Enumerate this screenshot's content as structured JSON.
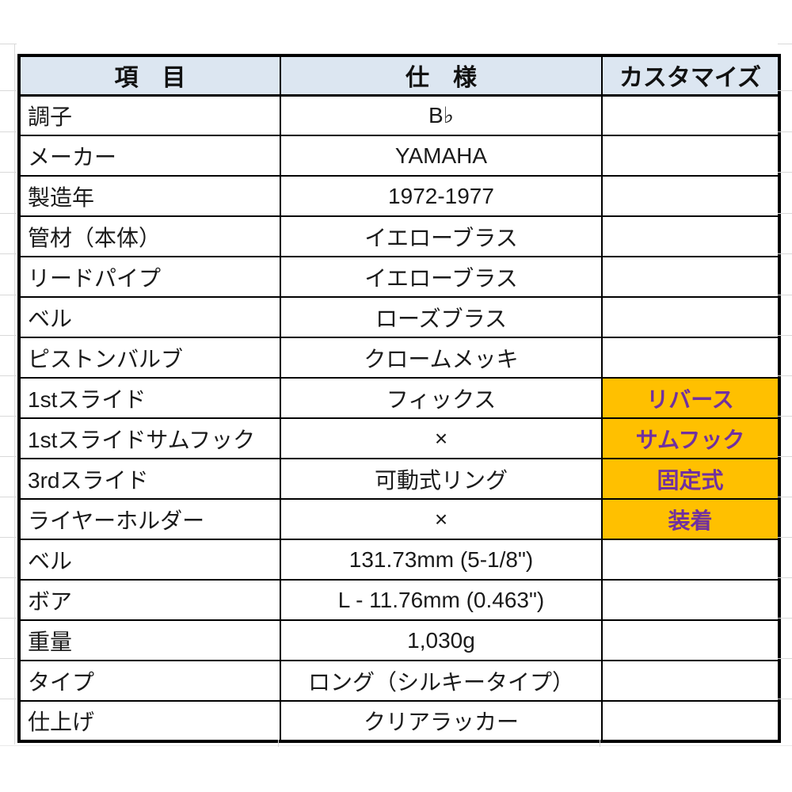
{
  "table": {
    "columns": [
      {
        "label": "項　目"
      },
      {
        "label": "仕　様"
      },
      {
        "label": "カスタマイズ"
      }
    ],
    "rows": [
      {
        "item": "調子",
        "spec": "B♭",
        "custom": ""
      },
      {
        "item": "メーカー",
        "spec": "YAMAHA",
        "custom": ""
      },
      {
        "item": "製造年",
        "spec": "1972-1977",
        "custom": ""
      },
      {
        "item": "管材（本体）",
        "spec": "イエローブラス",
        "custom": ""
      },
      {
        "item": "リードパイプ",
        "spec": "イエローブラス",
        "custom": ""
      },
      {
        "item": "ベル",
        "spec": "ローズブラス",
        "custom": ""
      },
      {
        "item": "ピストンバルブ",
        "spec": "クロームメッキ",
        "custom": ""
      },
      {
        "item": "1stスライド",
        "spec": "フィックス",
        "custom": "リバース"
      },
      {
        "item": "1stスライドサムフック",
        "spec": "×",
        "custom": "サムフック"
      },
      {
        "item": "3rdスライド",
        "spec": "可動式リング",
        "custom": "固定式"
      },
      {
        "item": "ライヤーホルダー",
        "spec": "×",
        "custom": "装着"
      },
      {
        "item": "ベル",
        "spec": "131.73mm (5-1/8\")",
        "custom": ""
      },
      {
        "item": "ボア",
        "spec": "L - 11.76mm (0.463\")",
        "custom": ""
      },
      {
        "item": "重量",
        "spec": "1,030g",
        "custom": ""
      },
      {
        "item": "タイプ",
        "spec": "ロング（シルキータイプ）",
        "custom": ""
      },
      {
        "item": "仕上げ",
        "spec": "クリアラッカー",
        "custom": ""
      }
    ]
  },
  "colors": {
    "header_bg": "#dce6f1",
    "highlight_bg": "#ffc000",
    "highlight_text": "#7030a0",
    "border_color": "#000000",
    "grid_color": "#d9d9d9"
  }
}
